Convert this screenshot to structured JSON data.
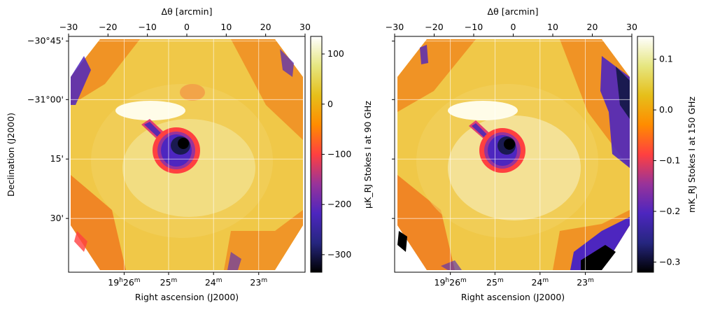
{
  "chart_data": [
    {
      "type": "heatmap",
      "name": "panel-90ghz",
      "top_axis": {
        "label": "Δθ [arcmin]",
        "range": [
          -30,
          30
        ],
        "ticks": [
          "−30",
          "−20",
          "−10",
          "0",
          "10",
          "20",
          "30"
        ]
      },
      "bottom_axis": {
        "label": "Right ascension (J2000)",
        "ticks": [
          {
            "main": "19",
            "sup1": "h",
            "mid": "26",
            "sup2": "m"
          },
          {
            "main": "25",
            "sup2": "m"
          },
          {
            "main": "24",
            "sup2": "m"
          },
          {
            "main": "23",
            "sup2": "m"
          }
        ]
      },
      "left_axis": {
        "label": "Declination (J2000)",
        "ticks": [
          "−30°45'",
          "−31°00'",
          "15'",
          "30'"
        ]
      },
      "colorbar": {
        "label": "μK_RJ Stokes I at 90 GHz",
        "range": [
          -335,
          135
        ],
        "ticks": [
          "−300",
          "−200",
          "−100",
          "0",
          "100"
        ]
      },
      "colormap": "CMRmap",
      "grid": true
    },
    {
      "type": "heatmap",
      "name": "panel-150ghz",
      "top_axis": {
        "label": "Δθ [arcmin]",
        "range": [
          -30,
          30
        ],
        "ticks": [
          "−30",
          "−20",
          "−10",
          "0",
          "10",
          "20",
          "30"
        ]
      },
      "bottom_axis": {
        "label": "Right ascension (J2000)",
        "ticks": [
          {
            "main": "19",
            "sup1": "h",
            "mid": "26",
            "sup2": "m"
          },
          {
            "main": "25",
            "sup2": "m"
          },
          {
            "main": "24",
            "sup2": "m"
          },
          {
            "main": "23",
            "sup2": "m"
          }
        ]
      },
      "colorbar": {
        "label": "mK_RJ Stokes I at 150 GHz",
        "range": [
          -0.32,
          0.145
        ],
        "ticks": [
          "−0.3",
          "−0.2",
          "−0.1",
          "0.0",
          "0.1"
        ]
      },
      "colormap": "CMRmap",
      "grid": true
    }
  ],
  "colors": {
    "cmap_stops": [
      "#000000",
      "#262680",
      "#4d26bf",
      "#993399",
      "#ff4040",
      "#ff8c00",
      "#e6bf1a",
      "#e6e680",
      "#ffffff"
    ]
  }
}
